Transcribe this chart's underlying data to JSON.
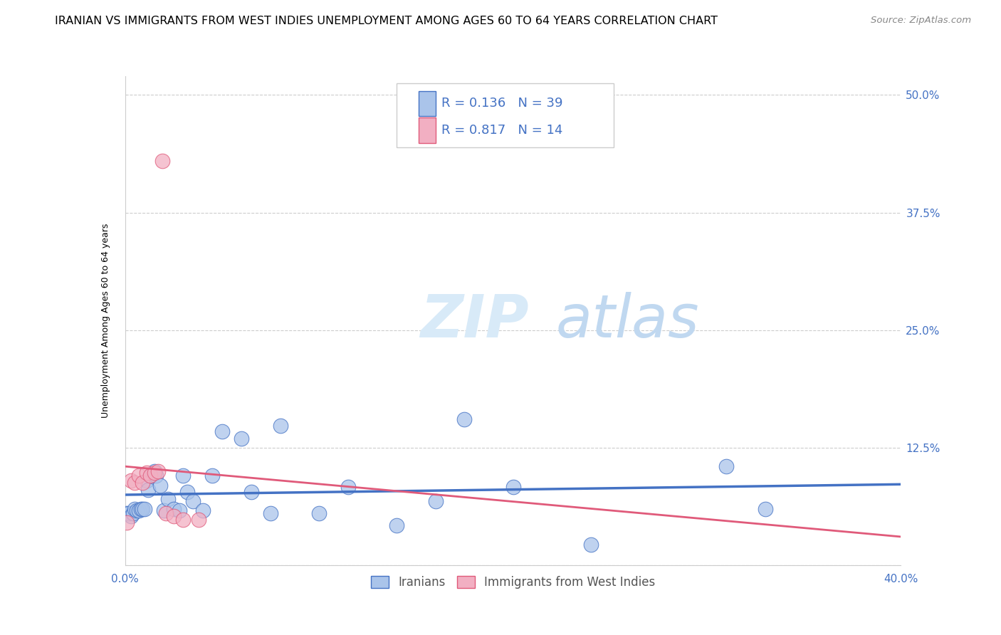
{
  "title": "IRANIAN VS IMMIGRANTS FROM WEST INDIES UNEMPLOYMENT AMONG AGES 60 TO 64 YEARS CORRELATION CHART",
  "source": "Source: ZipAtlas.com",
  "ylabel": "Unemployment Among Ages 60 to 64 years",
  "xlabel_iranians": "Iranians",
  "xlabel_west_indies": "Immigrants from West Indies",
  "xlim": [
    0.0,
    0.4
  ],
  "ylim": [
    0.0,
    0.52
  ],
  "color_iranians": "#aac4ea",
  "color_west_indies": "#f2afc2",
  "color_iranians_line": "#4472c4",
  "color_west_indies_line": "#e05a7a",
  "color_trendline_dashed": "#f0b8cc",
  "legend_r1": "0.136",
  "legend_n1": "39",
  "legend_r2": "0.817",
  "legend_n2": "14",
  "title_fontsize": 11.5,
  "source_fontsize": 9.5,
  "axis_label_fontsize": 9,
  "tick_fontsize": 11,
  "legend_fontsize": 13,
  "iranians_x": [
    0.001,
    0.002,
    0.003,
    0.004,
    0.005,
    0.006,
    0.007,
    0.008,
    0.009,
    0.01,
    0.011,
    0.012,
    0.013,
    0.015,
    0.016,
    0.018,
    0.02,
    0.022,
    0.025,
    0.028,
    0.03,
    0.032,
    0.035,
    0.04,
    0.045,
    0.05,
    0.06,
    0.065,
    0.075,
    0.08,
    0.1,
    0.115,
    0.14,
    0.16,
    0.175,
    0.2,
    0.24,
    0.31,
    0.33
  ],
  "iranians_y": [
    0.055,
    0.055,
    0.052,
    0.055,
    0.06,
    0.058,
    0.058,
    0.06,
    0.06,
    0.06,
    0.09,
    0.08,
    0.095,
    0.1,
    0.095,
    0.085,
    0.058,
    0.07,
    0.06,
    0.058,
    0.095,
    0.078,
    0.068,
    0.058,
    0.095,
    0.142,
    0.135,
    0.078,
    0.055,
    0.148,
    0.055,
    0.083,
    0.042,
    0.068,
    0.155,
    0.083,
    0.022,
    0.105,
    0.06
  ],
  "west_indies_x": [
    0.001,
    0.003,
    0.005,
    0.007,
    0.009,
    0.011,
    0.013,
    0.015,
    0.017,
    0.019,
    0.021,
    0.025,
    0.03,
    0.038
  ],
  "west_indies_y": [
    0.045,
    0.09,
    0.088,
    0.095,
    0.088,
    0.098,
    0.095,
    0.098,
    0.1,
    0.43,
    0.055,
    0.052,
    0.048,
    0.048
  ]
}
